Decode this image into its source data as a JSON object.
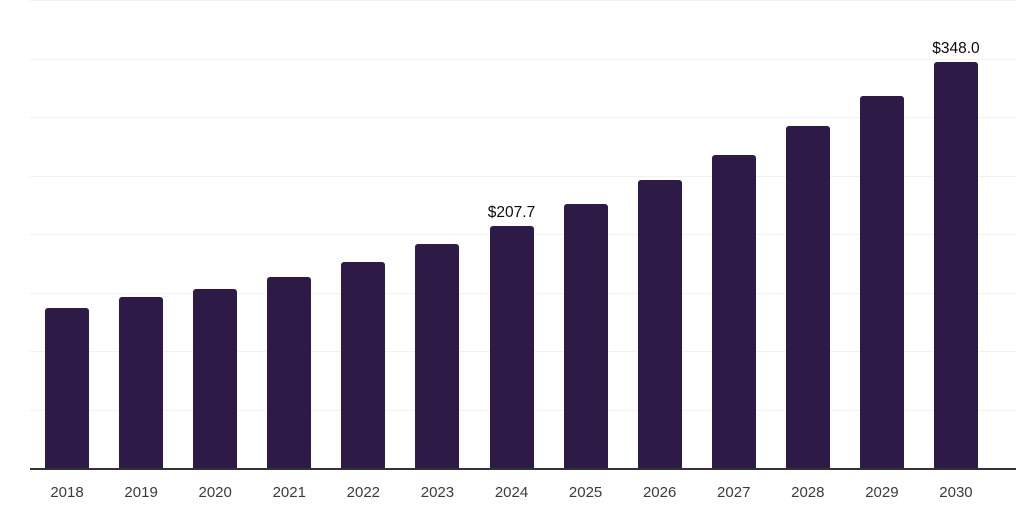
{
  "chart_data": {
    "type": "bar",
    "title": "",
    "xlabel": "",
    "ylabel": "",
    "categories": [
      "2018",
      "2019",
      "2020",
      "2021",
      "2022",
      "2023",
      "2024",
      "2025",
      "2026",
      "2027",
      "2028",
      "2029",
      "2030"
    ],
    "values": [
      137.7,
      146.9,
      153.8,
      164.0,
      176.8,
      191.9,
      207.7,
      226.3,
      246.6,
      268.8,
      292.9,
      319.2,
      348.0
    ],
    "point_labels": [
      "",
      "",
      "",
      "",
      "",
      "",
      "$207.7",
      "",
      "",
      "",
      "",
      "",
      "$348.0"
    ],
    "ylim": [
      0,
      400
    ],
    "gridline_step": 50,
    "grid": "horizontal-only",
    "legend": "none",
    "colors": {
      "bar": "#2e1a47",
      "axis": "#333333",
      "gridline": "#f2f2f2",
      "tick_label": "#3b3b3b",
      "data_label": "#0a0a0a",
      "background": "#ffffff"
    }
  }
}
